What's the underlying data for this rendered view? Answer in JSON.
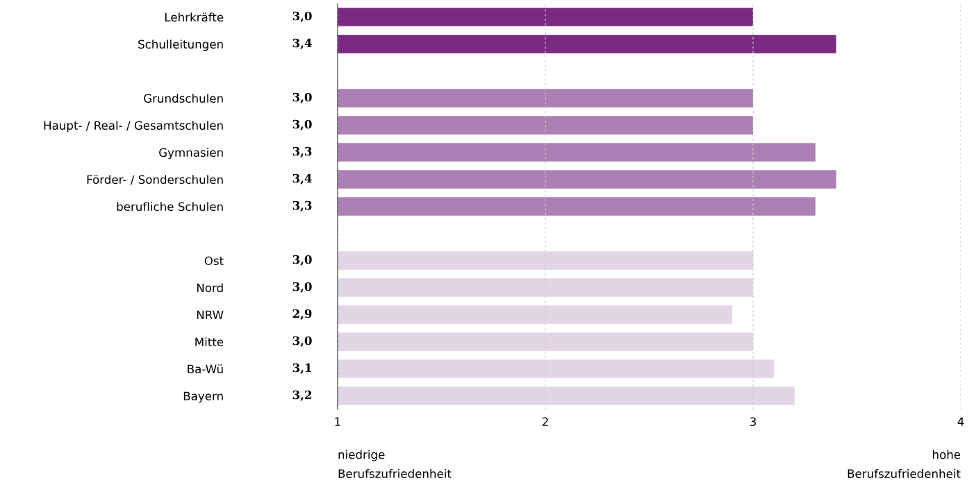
{
  "chart_data": {
    "type": "bar",
    "orientation": "horizontal",
    "categories": [
      "Lehrkräfte",
      "Schulleitungen",
      null,
      "Grundschulen",
      "Haupt- / Real- / Gesamtschulen",
      "Gymnasien",
      "Förder- / Sonderschulen",
      "berufliche Schulen",
      null,
      "Ost",
      "Nord",
      "NRW",
      "Mitte",
      "Ba-Wü",
      "Bayern"
    ],
    "values": [
      3.0,
      3.4,
      null,
      3.0,
      3.0,
      3.3,
      3.4,
      3.3,
      null,
      3.0,
      3.0,
      2.9,
      3.0,
      3.1,
      3.2
    ],
    "colors": [
      "#7b2a83",
      "#7b2a83",
      null,
      "#ad80b5",
      "#ad80b5",
      "#ad80b5",
      "#ad80b5",
      "#ad80b5",
      null,
      "#e2d5e6",
      "#e2d5e6",
      "#e2d5e6",
      "#e2d5e6",
      "#e2d5e6",
      "#e2d5e6"
    ],
    "value_labels": [
      "3,0",
      "3,4",
      null,
      "3,0",
      "3,0",
      "3,3",
      "3,4",
      "3,3",
      null,
      "3,0",
      "3,0",
      "2,9",
      "3,0",
      "3,1",
      "3,2"
    ],
    "xlim": [
      1,
      4
    ],
    "xticks": [
      1,
      2,
      3,
      4
    ],
    "grid": "x",
    "annotations": [
      "niedrige\nBerufszufriedenheit",
      "hohe\nBerufszufriedenheit"
    ]
  }
}
